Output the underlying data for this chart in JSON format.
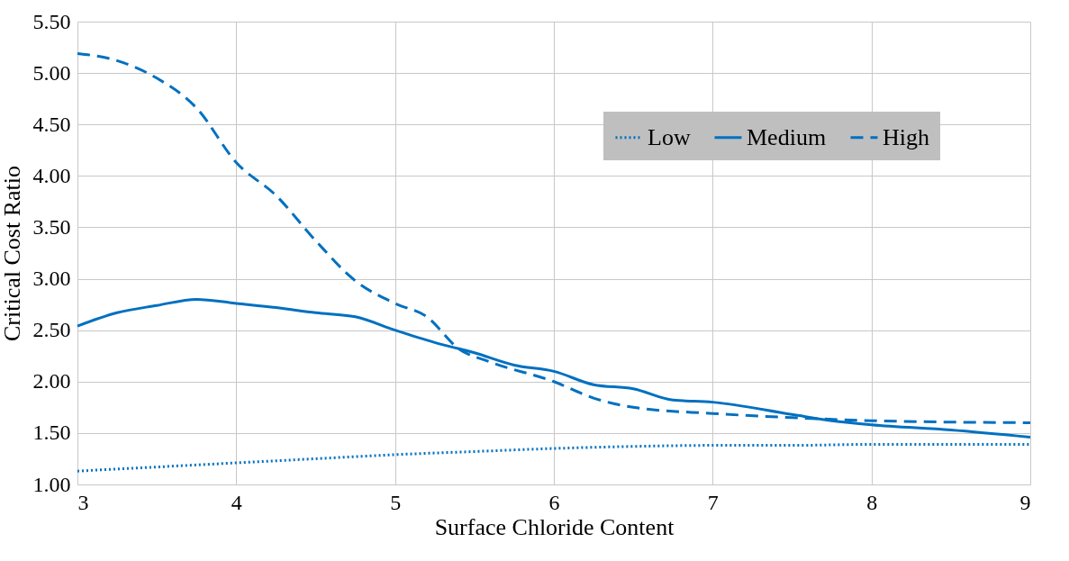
{
  "chart_data": {
    "type": "line",
    "xlabel": "Surface Chloride Content",
    "ylabel": "Critical Cost Ratio",
    "xlim": [
      3,
      9
    ],
    "xticks": [
      3,
      4,
      5,
      6,
      7,
      8,
      9
    ],
    "ylim": [
      1,
      5.5
    ],
    "yticks": [
      {
        "value": 1,
        "label": "1.00"
      },
      {
        "value": 1.5,
        "label": "1.50"
      },
      {
        "value": 2,
        "label": "2.00"
      },
      {
        "value": 2.5,
        "label": "2.50"
      },
      {
        "value": 3,
        "label": "3.00"
      },
      {
        "value": 3.5,
        "label": "3.50"
      },
      {
        "value": 4,
        "label": "4.00"
      },
      {
        "value": 4.5,
        "label": "4.50"
      },
      {
        "value": 5,
        "label": "5.00"
      },
      {
        "value": 5.5,
        "label": "5.50"
      }
    ],
    "grid": true,
    "legend": "top right",
    "marker": "none",
    "series": [
      {
        "name": "Low",
        "color": "#0070c0",
        "line_style": "dotted",
        "x": [
          3,
          3.5,
          4,
          4.5,
          5,
          5.5,
          6,
          6.5,
          7,
          7.5,
          8,
          8.5,
          9
        ],
        "values": [
          1.13,
          1.17,
          1.21,
          1.25,
          1.29,
          1.32,
          1.35,
          1.37,
          1.38,
          1.38,
          1.39,
          1.39,
          1.39
        ]
      },
      {
        "name": "Medium",
        "color": "#0070c0",
        "line_style": "solid",
        "x": [
          3,
          3.25,
          3.5,
          3.75,
          4,
          4.25,
          4.5,
          4.75,
          5,
          5.25,
          5.5,
          5.75,
          6,
          6.25,
          6.5,
          6.75,
          7,
          7.5,
          7.75,
          8,
          8.5,
          9
        ],
        "values": [
          2.54,
          2.67,
          2.74,
          2.8,
          2.76,
          2.72,
          2.67,
          2.63,
          2.5,
          2.38,
          2.28,
          2.16,
          2.1,
          1.97,
          1.93,
          1.82,
          1.8,
          1.68,
          1.62,
          1.58,
          1.53,
          1.46
        ]
      },
      {
        "name": "High",
        "color": "#0070c0",
        "line_style": "dashed",
        "x": [
          3,
          3.25,
          3.5,
          3.75,
          4,
          4.25,
          4.5,
          4.75,
          5,
          5.2,
          5.4,
          5.6,
          6,
          6.25,
          6.5,
          7,
          7.5,
          8,
          9
        ],
        "values": [
          5.19,
          5.12,
          4.95,
          4.66,
          4.13,
          3.81,
          3.37,
          2.98,
          2.76,
          2.63,
          2.32,
          2.19,
          2,
          1.84,
          1.75,
          1.69,
          1.65,
          1.62,
          1.6
        ]
      }
    ]
  }
}
